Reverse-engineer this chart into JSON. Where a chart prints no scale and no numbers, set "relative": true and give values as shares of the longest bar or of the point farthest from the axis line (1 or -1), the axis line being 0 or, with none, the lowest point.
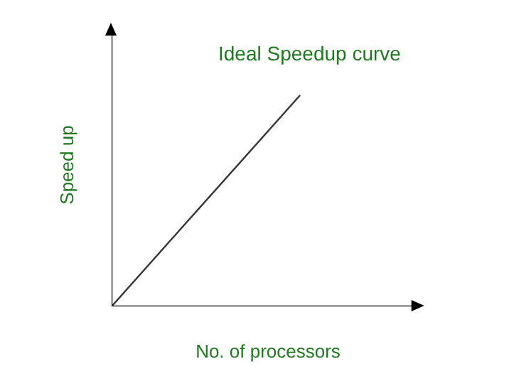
{
  "chart_data": {
    "type": "line",
    "title": "Ideal Speedup curve",
    "xlabel": "No. of processors",
    "ylabel": "Speed up",
    "categories": [
      null,
      null
    ],
    "relative": true,
    "series": [
      {
        "color": "#333333",
        "values": [
          0,
          1
        ]
      }
    ],
    "grid": false,
    "marker": "none",
    "line_style": "solid"
  }
}
